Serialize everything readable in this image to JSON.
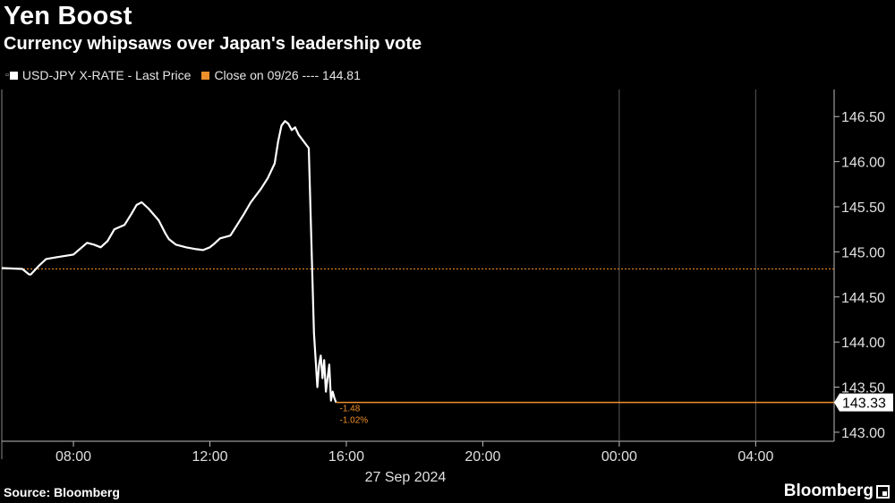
{
  "header": {
    "title": "Yen Boost",
    "subtitle": "Currency whipsaws over Japan's leadership vote"
  },
  "legend": [
    {
      "label": "USD-JPY X-RATE - Last Price",
      "color": "#ffffff"
    },
    {
      "label": "Close on 09/26 ---- 144.81",
      "color": "#f0902a"
    }
  ],
  "footer": {
    "source": "Source: Bloomberg",
    "logo": "Bloomberg"
  },
  "chart_data": {
    "type": "line",
    "xlabel": "27 Sep 2024",
    "ylabel": "",
    "x_unit": "hours since 27 Sep 2024 00:00",
    "xlim": [
      5.9,
      30.3
    ],
    "ylim": [
      142.9,
      146.8
    ],
    "x_ticks": [
      {
        "value": 8,
        "label": "08:00"
      },
      {
        "value": 12,
        "label": "12:00"
      },
      {
        "value": 16,
        "label": "16:00"
      },
      {
        "value": 20,
        "label": "20:00"
      },
      {
        "value": 24,
        "label": "00:00"
      },
      {
        "value": 28,
        "label": "04:00"
      }
    ],
    "y_ticks": [
      {
        "value": 146.5,
        "label": "146.50"
      },
      {
        "value": 146.0,
        "label": "146.00"
      },
      {
        "value": 145.5,
        "label": "145.50"
      },
      {
        "value": 145.0,
        "label": "145.00"
      },
      {
        "value": 144.5,
        "label": "144.50"
      },
      {
        "value": 144.0,
        "label": "144.00"
      },
      {
        "value": 143.5,
        "label": "143.50"
      },
      {
        "value": 143.0,
        "label": "143.00"
      }
    ],
    "grid": {
      "vertical_lines_at": [
        24,
        28
      ]
    },
    "series": [
      {
        "name": "USD-JPY X-RATE - Last Price",
        "color": "#ffffff",
        "x": [
          5.9,
          6.5,
          6.7,
          6.75,
          7.0,
          7.2,
          7.5,
          8.0,
          8.4,
          8.6,
          8.8,
          9.0,
          9.2,
          9.5,
          9.7,
          9.85,
          10.0,
          10.2,
          10.5,
          10.7,
          10.8,
          11.0,
          11.3,
          11.6,
          11.8,
          12.0,
          12.1,
          12.3,
          12.6,
          12.8,
          13.0,
          13.2,
          13.5,
          13.7,
          13.9,
          14.0,
          14.1,
          14.2,
          14.3,
          14.4,
          14.5,
          14.6,
          14.7,
          14.8,
          14.9,
          15.0,
          15.05,
          15.1,
          15.15,
          15.2,
          15.25,
          15.3,
          15.35,
          15.4,
          15.45,
          15.5,
          15.55,
          15.6,
          15.65,
          15.7
        ],
        "y": [
          144.82,
          144.81,
          144.75,
          144.75,
          144.85,
          144.92,
          144.94,
          144.97,
          145.1,
          145.08,
          145.05,
          145.12,
          145.25,
          145.3,
          145.42,
          145.52,
          145.55,
          145.48,
          145.35,
          145.2,
          145.14,
          145.08,
          145.05,
          145.03,
          145.02,
          145.05,
          145.08,
          145.15,
          145.18,
          145.3,
          145.42,
          145.55,
          145.7,
          145.82,
          145.98,
          146.22,
          146.4,
          146.45,
          146.42,
          146.35,
          146.38,
          146.3,
          146.25,
          146.2,
          146.15,
          144.8,
          144.1,
          143.8,
          143.5,
          143.75,
          143.85,
          143.6,
          143.8,
          143.45,
          143.6,
          143.75,
          143.35,
          143.45,
          143.38,
          143.33
        ]
      },
      {
        "name": "Close on 09/26",
        "color": "#f0902a",
        "value": 144.81
      }
    ],
    "last_value": {
      "value": 143.33,
      "label": "143.33"
    },
    "annotations": [
      {
        "label": "-1.48"
      },
      {
        "label": "-1.02%"
      }
    ]
  }
}
